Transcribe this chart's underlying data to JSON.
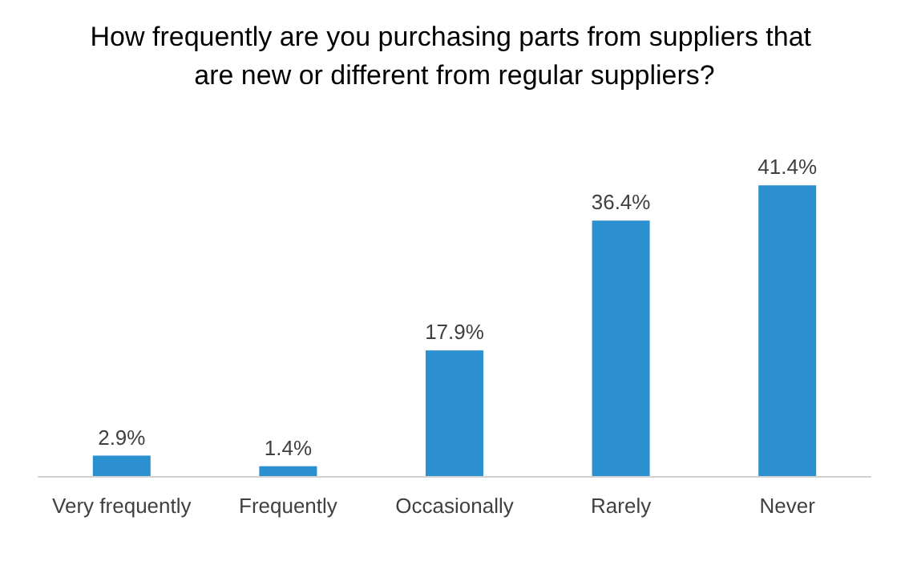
{
  "chart_data": {
    "type": "bar",
    "title": "How frequently are you purchasing parts from suppliers that are new or different from regular suppliers?",
    "categories": [
      "Very frequently",
      "Frequently",
      "Occasionally",
      "Rarely",
      "Never"
    ],
    "values": [
      2.9,
      1.4,
      17.9,
      36.4,
      41.4
    ],
    "value_labels": [
      "2.9%",
      "1.4%",
      "17.9%",
      "36.4%",
      "41.4%"
    ],
    "color": "#2b8fd0"
  }
}
